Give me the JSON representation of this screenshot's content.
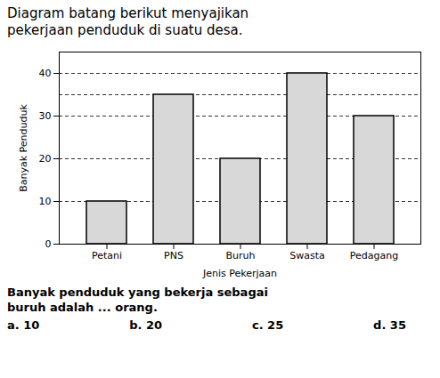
{
  "chart_data": {
    "type": "bar",
    "title": "Diagram batang berikut menyajikan\npekerjaan penduduk di suatu desa.",
    "categories": [
      "Petani",
      "PNS",
      "Buruh",
      "Swasta",
      "Pedagang"
    ],
    "values": [
      10,
      35,
      20,
      40,
      30
    ],
    "color": "#d8d8d8",
    "xlabel": "Jenis Pekerjaan",
    "ylabel": "Banyak Penduduk",
    "ylim": [
      0,
      45
    ],
    "yticks": [
      0,
      10,
      20,
      30,
      40
    ],
    "grid": true,
    "hlines": [
      35
    ],
    "annotations": [
      "Banyak penduduk yang bekerja sebagai",
      "buruh adalah ... orang."
    ],
    "options": [
      "a. 10",
      "b. 20",
      "c. 25",
      "d. 35"
    ]
  }
}
